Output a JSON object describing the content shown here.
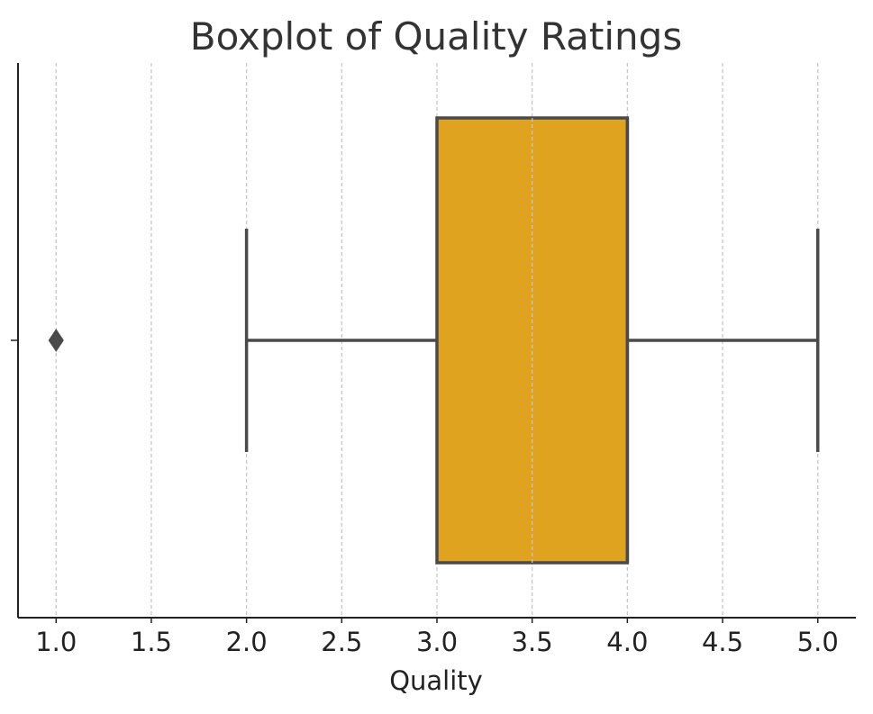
{
  "chart_data": {
    "type": "boxplot",
    "orientation": "horizontal",
    "title": "Boxplot of Quality Ratings",
    "xlabel": "Quality",
    "ylabel": "",
    "xlim": [
      0.8,
      5.2
    ],
    "xticks": [
      1.0,
      1.5,
      2.0,
      2.5,
      3.0,
      3.5,
      4.0,
      4.5,
      5.0
    ],
    "xtick_labels": [
      "1.0",
      "1.5",
      "2.0",
      "2.5",
      "3.0",
      "3.5",
      "4.0",
      "4.5",
      "5.0"
    ],
    "grid": "vertical-dashed",
    "box": {
      "whisker_low": 2.0,
      "q1": 3.0,
      "median": 4.0,
      "q3": 4.0,
      "whisker_high": 5.0,
      "outliers": [
        1.0
      ]
    },
    "colors": {
      "box_fill": "#E0A320",
      "box_edge": "#4a4a4a",
      "grid": "#c8c8c8",
      "axis": "#222222",
      "title": "#333333"
    }
  }
}
